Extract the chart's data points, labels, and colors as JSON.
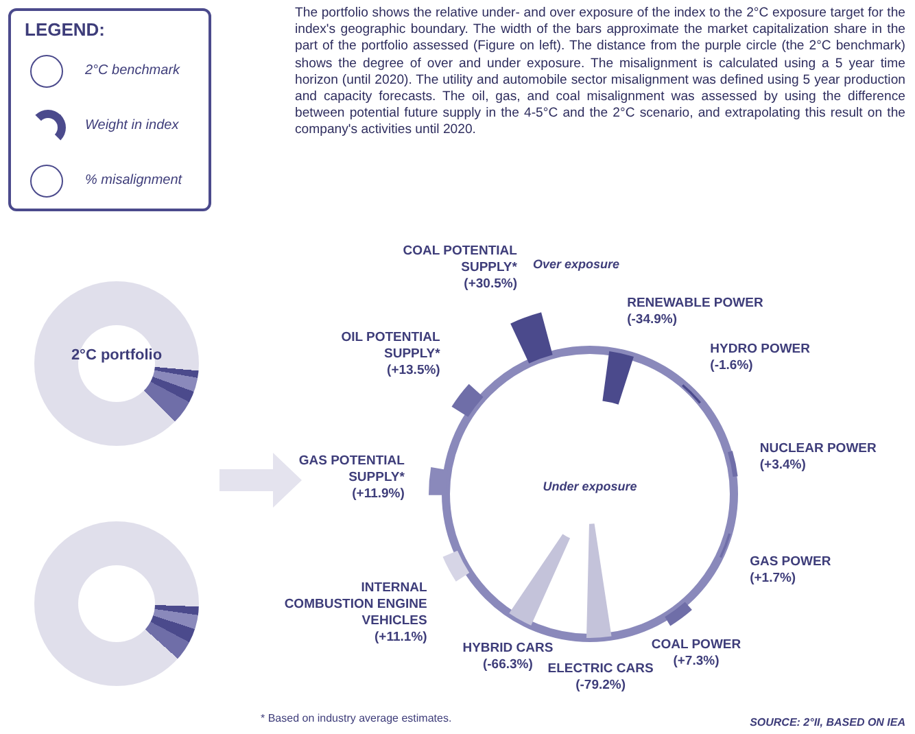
{
  "chart_data": {
    "type": "other",
    "subtitle": "The portfolio shows the relative under- and over exposure of the index to the 2°C exposure target for the index's geographic boundary. The width of the bars approximate the market capitalization share in the part of the portfolio assessed (Figure on left). The distance from the purple circle (the 2°C benchmark) shows the degree of over and under exposure. The misalignment is calculated using a 5 year time horizon (until 2020). The utility and automobile sector misalignment was defined using 5 year production and capacity forecasts. The oil, gas, and coal misalignment was assessed by using the difference between potential future supply in the 4-5°C and the 2°C scenario, and extrapolating this result on the company's activities until 2020.",
    "legend_title": "LEGEND:",
    "categories": [
      "COAL POTENTIAL SUPPLY*",
      "RENEWABLE POWER",
      "HYDRO POWER",
      "NUCLEAR POWER",
      "GAS POWER",
      "COAL POWER",
      "ELECTRIC CARS",
      "HYBRID CARS",
      "INTERNAL COMBUSTION ENGINE VEHICLES",
      "GAS POTENTIAL SUPPLY*",
      "OIL POTENTIAL SUPPLY*"
    ],
    "values": [
      30.5,
      -34.9,
      -1.6,
      3.4,
      1.7,
      7.3,
      -79.2,
      -66.3,
      11.1,
      11.9,
      13.5
    ],
    "value_labels": [
      "(+30.5%)",
      "(-34.9%)",
      "(-1.6%)",
      "(+3.4%)",
      "(+1.7%)",
      "(+7.3%)",
      "(-79.2%)",
      "(-66.3%)",
      "(+11.1%)",
      "(+11.9%)",
      "(+13.5%)"
    ],
    "colors": [
      "#4b4a8c",
      "#4b4a8c",
      "#4b4a8c",
      "#6f6ea8",
      "#6f6ea8",
      "#6f6ea8",
      "#c4c3da",
      "#c4c3da",
      "#d6d5e6",
      "#8a89bb",
      "#6f6ea8"
    ],
    "annotations": [
      "2°C benchmark",
      "Weight in index",
      "% misalignment",
      "Over exposure",
      "Under exposure",
      "2°C portfolio",
      "* Based on industry average estimates.",
      "SOURCE: 2°II, BASED ON IEA"
    ]
  }
}
